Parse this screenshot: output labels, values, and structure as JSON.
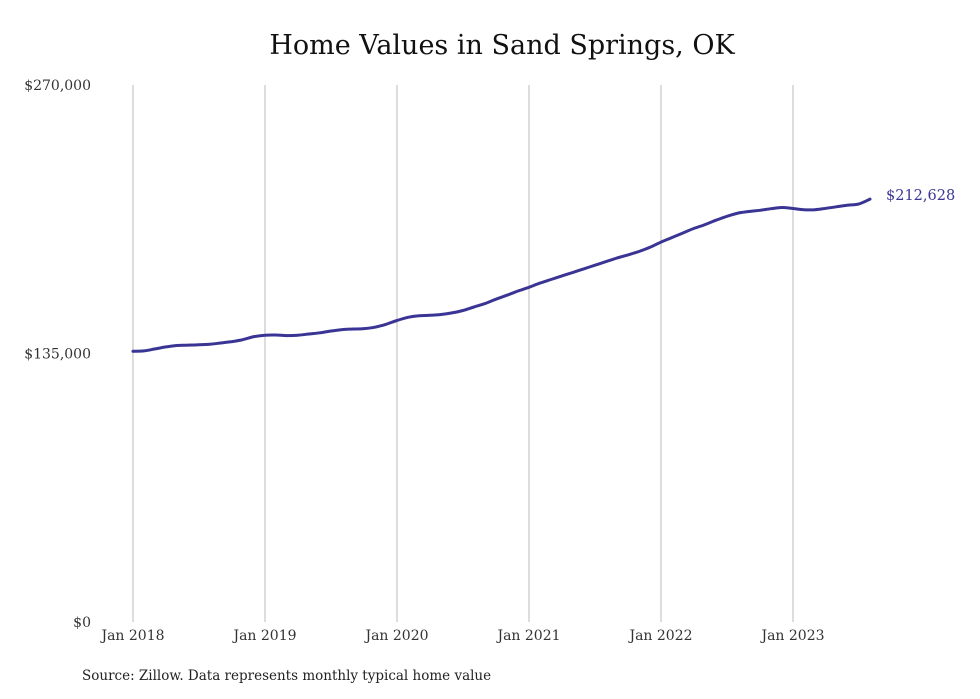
{
  "chart_data": {
    "type": "line",
    "title": "Home Values in Sand Springs, OK",
    "source": "Source: Zillow. Data represents monthly typical home value",
    "ylim": [
      0,
      270000
    ],
    "y_ticks": [
      {
        "value": 270000,
        "label": "$270,000"
      },
      {
        "value": 135000,
        "label": "$135,000"
      },
      {
        "value": 0,
        "label": "$0"
      }
    ],
    "x_ticks": [
      {
        "value": "2018-01",
        "label": "Jan 2018"
      },
      {
        "value": "2019-01",
        "label": "Jan 2019"
      },
      {
        "value": "2020-01",
        "label": "Jan 2020"
      },
      {
        "value": "2021-01",
        "label": "Jan 2021"
      },
      {
        "value": "2022-01",
        "label": "Jan 2022"
      },
      {
        "value": "2023-01",
        "label": "Jan 2023"
      }
    ],
    "x_range": [
      "2018-01",
      "2023-12"
    ],
    "grid": {
      "vertical": true,
      "horizontal": false
    },
    "line_color": "#3a3594",
    "grid_color": "#bbbbbb",
    "end_label": "$212,628",
    "series": [
      {
        "x": [
          "2018-01",
          "2018-02",
          "2018-03",
          "2018-04",
          "2018-05",
          "2018-06",
          "2018-07",
          "2018-08",
          "2018-09",
          "2018-10",
          "2018-11",
          "2018-12",
          "2019-01",
          "2019-02",
          "2019-03",
          "2019-04",
          "2019-05",
          "2019-06",
          "2019-07",
          "2019-08",
          "2019-09",
          "2019-10",
          "2019-11",
          "2019-12",
          "2020-01",
          "2020-02",
          "2020-03",
          "2020-04",
          "2020-05",
          "2020-06",
          "2020-07",
          "2020-08",
          "2020-09",
          "2020-10",
          "2020-11",
          "2020-12",
          "2021-01",
          "2021-02",
          "2021-03",
          "2021-04",
          "2021-05",
          "2021-06",
          "2021-07",
          "2021-08",
          "2021-09",
          "2021-10",
          "2021-11",
          "2021-12",
          "2022-01",
          "2022-02",
          "2022-03",
          "2022-04",
          "2022-05",
          "2022-06",
          "2022-07",
          "2022-08",
          "2022-09",
          "2022-10",
          "2022-11",
          "2022-12",
          "2023-01",
          "2023-02",
          "2023-03",
          "2023-04",
          "2023-05",
          "2023-06",
          "2023-07",
          "2023-08"
        ],
        "values": [
          136100,
          136300,
          137300,
          138300,
          139000,
          139200,
          139400,
          139700,
          140300,
          141000,
          142000,
          143500,
          144200,
          144300,
          144000,
          144200,
          144800,
          145400,
          146300,
          147000,
          147300,
          147500,
          148200,
          149700,
          151600,
          153200,
          154000,
          154200,
          154600,
          155400,
          156600,
          158400,
          160100,
          162300,
          164300,
          166400,
          168300,
          170400,
          172200,
          174000,
          175800,
          177600,
          179400,
          181200,
          183000,
          184600,
          186300,
          188400,
          191000,
          193300,
          195600,
          197900,
          199800,
          202000,
          204000,
          205600,
          206400,
          207000,
          207800,
          208400,
          207900,
          207300,
          207300,
          208000,
          208800,
          209600,
          210200,
          212628
        ]
      }
    ]
  }
}
